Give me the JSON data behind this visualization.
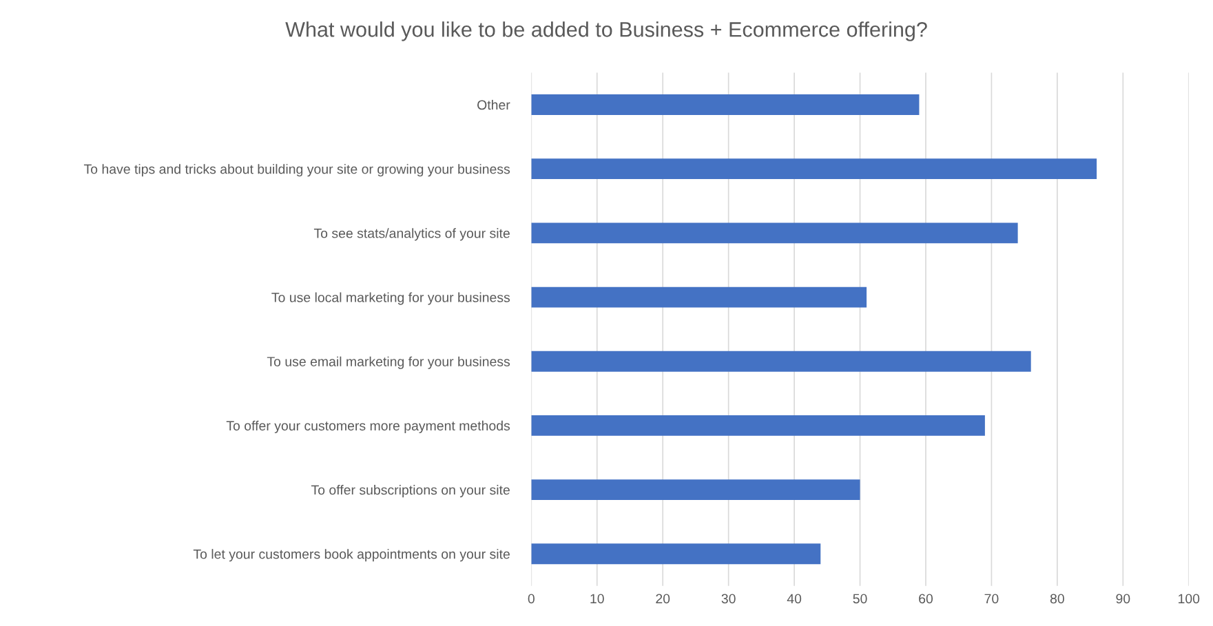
{
  "chart_data": {
    "type": "bar",
    "orientation": "horizontal",
    "title": "What would you like to be added to Business + Ecommerce offering?",
    "categories": [
      "Other",
      "To have tips and tricks about building your site or growing your business",
      "To see stats/analytics of your site",
      "To use local marketing for your business",
      "To use email marketing for your business",
      "To offer your customers more payment methods",
      "To offer subscriptions on your site",
      "To let your customers book appointments on your site"
    ],
    "values": [
      59,
      86,
      74,
      51,
      76,
      69,
      50,
      44
    ],
    "color": "#4472c4",
    "xlim": [
      0,
      100
    ],
    "xticks": [
      0,
      10,
      20,
      30,
      40,
      50,
      60,
      70,
      80,
      90,
      100
    ],
    "grid": "x"
  }
}
